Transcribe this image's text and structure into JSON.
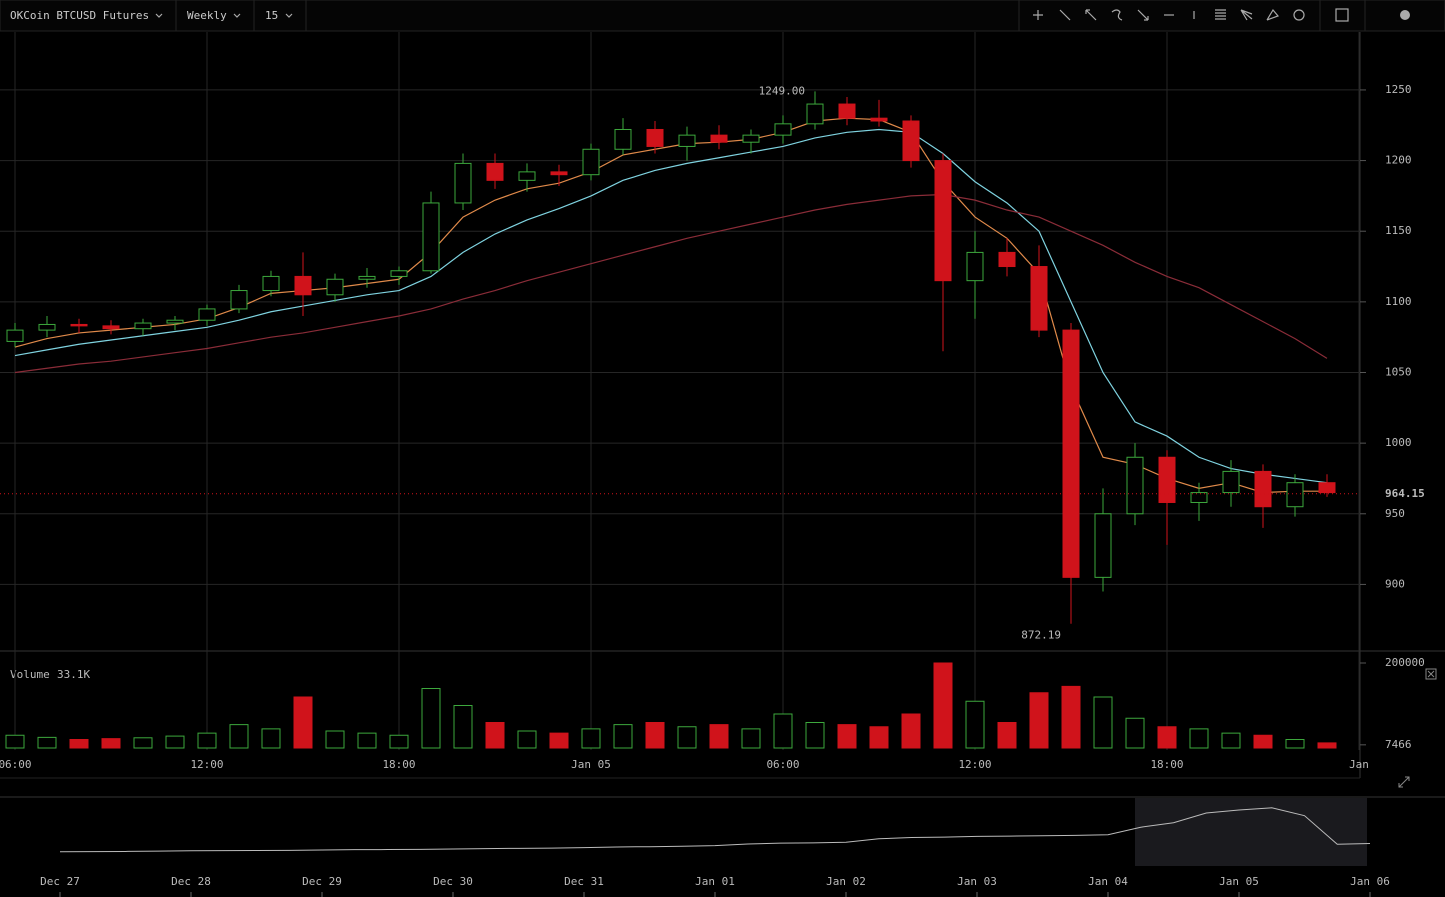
{
  "toolbar": {
    "symbol": "OKCoin BTCUSD Futures",
    "range": "Weekly",
    "interval": "15"
  },
  "chart_data": {
    "type": "candlestick",
    "categories": [
      "06:00",
      null,
      null,
      null,
      null,
      null,
      "12:00",
      null,
      null,
      null,
      null,
      null,
      "18:00",
      null,
      null,
      null,
      null,
      null,
      "Jan 05",
      null,
      null,
      null,
      null,
      null,
      "06:00",
      null,
      null,
      null,
      null,
      null,
      "12:00",
      null,
      null,
      null,
      null,
      null,
      "18:00",
      null,
      null,
      null,
      null,
      null,
      "Jan"
    ],
    "open": [
      1072,
      1080,
      1084,
      1083,
      1081,
      1085,
      1087,
      1095,
      1108,
      1118,
      1105,
      1116,
      1118,
      1122,
      1170,
      1198,
      1186,
      1192,
      1190,
      1208,
      1222,
      1210,
      1218,
      1213,
      1218,
      1226,
      1240,
      1230,
      1228,
      1200,
      1115,
      1135,
      1125,
      1080,
      905,
      950,
      990,
      958,
      965,
      980,
      955,
      972,
      null
    ],
    "high": [
      1085,
      1090,
      1088,
      1087,
      1088,
      1090,
      1098,
      1112,
      1122,
      1135,
      1120,
      1124,
      1125,
      1178,
      1205,
      1205,
      1198,
      1197,
      1212,
      1230,
      1228,
      1224,
      1225,
      1222,
      1232,
      1249,
      1245,
      1243,
      1232,
      1205,
      1150,
      1145,
      1140,
      1085,
      968,
      1000,
      995,
      972,
      988,
      985,
      978,
      978,
      null
    ],
    "low": [
      1068,
      1075,
      1078,
      1077,
      1076,
      1080,
      1083,
      1092,
      1104,
      1090,
      1100,
      1110,
      1112,
      1120,
      1165,
      1180,
      1178,
      1182,
      1186,
      1204,
      1205,
      1200,
      1208,
      1205,
      1212,
      1222,
      1225,
      1224,
      1195,
      1065,
      1088,
      1118,
      1075,
      872.19,
      895,
      942,
      928,
      945,
      955,
      940,
      948,
      962,
      null
    ],
    "close": [
      1080,
      1084,
      1083,
      1081,
      1085,
      1087,
      1095,
      1108,
      1118,
      1105,
      1116,
      1118,
      1122,
      1170,
      1198,
      1186,
      1192,
      1190,
      1208,
      1222,
      1210,
      1218,
      1213,
      1218,
      1226,
      1240,
      1230,
      1228,
      1200,
      1115,
      1135,
      1125,
      1080,
      905,
      950,
      990,
      958,
      965,
      980,
      955,
      972,
      965,
      null
    ],
    "volume": [
      30000,
      25000,
      20000,
      22000,
      24000,
      28000,
      35000,
      55000,
      45000,
      120000,
      40000,
      35000,
      30000,
      140000,
      100000,
      60000,
      40000,
      35000,
      45000,
      55000,
      60000,
      50000,
      55000,
      45000,
      80000,
      60000,
      55000,
      50000,
      80000,
      200000,
      110000,
      60000,
      130000,
      145000,
      120000,
      70000,
      50000,
      45000,
      35000,
      30000,
      20000,
      12000,
      null
    ],
    "overlays": [
      {
        "color": "#e08a4a",
        "values": [
          1068,
          1074,
          1078,
          1080,
          1082,
          1084,
          1088,
          1096,
          1106,
          1108,
          1110,
          1113,
          1116,
          1135,
          1160,
          1172,
          1180,
          1184,
          1192,
          1204,
          1208,
          1212,
          1213,
          1215,
          1220,
          1228,
          1230,
          1229,
          1220,
          1185,
          1160,
          1145,
          1120,
          1040,
          990,
          985,
          975,
          968,
          972,
          965,
          966,
          966,
          null
        ]
      },
      {
        "color": "#7fd3e0",
        "values": [
          1062,
          1066,
          1070,
          1073,
          1076,
          1079,
          1082,
          1087,
          1093,
          1097,
          1101,
          1105,
          1108,
          1118,
          1135,
          1148,
          1158,
          1166,
          1175,
          1186,
          1193,
          1198,
          1202,
          1206,
          1210,
          1216,
          1220,
          1222,
          1220,
          1205,
          1185,
          1170,
          1150,
          1100,
          1050,
          1015,
          1005,
          990,
          982,
          978,
          975,
          972,
          null
        ]
      },
      {
        "color": "#8a2c38",
        "values": [
          1050,
          1053,
          1056,
          1058,
          1061,
          1064,
          1067,
          1071,
          1075,
          1078,
          1082,
          1086,
          1090,
          1095,
          1102,
          1108,
          1115,
          1121,
          1127,
          1133,
          1139,
          1145,
          1150,
          1155,
          1160,
          1165,
          1169,
          1172,
          1175,
          1176,
          1172,
          1165,
          1160,
          1150,
          1140,
          1128,
          1118,
          1110,
          1098,
          1086,
          1074,
          1060,
          null
        ]
      }
    ],
    "up_color": "#3da83d",
    "down_color": "#d0131b",
    "ylim": [
      855,
      1291
    ],
    "yticks": [
      900,
      950,
      1000,
      1050,
      1100,
      1150,
      1200,
      1250
    ],
    "grid": true,
    "annotations": [
      {
        "index": 25,
        "value": 1249,
        "label": "1249.00"
      },
      {
        "index": 33,
        "value": 872.19,
        "label": "872.19"
      }
    ],
    "last_price": {
      "value": 964.15,
      "label": "964.15"
    },
    "volume_title": "Volume",
    "volume_value_label": "33.1K",
    "vlim": [
      0,
      200000
    ],
    "vticks": [
      7466,
      200000
    ]
  },
  "navigator": {
    "categories": [
      "Dec 27",
      null,
      null,
      null,
      "Dec 28",
      null,
      null,
      null,
      "Dec 29",
      null,
      null,
      null,
      "Dec 30",
      null,
      null,
      null,
      "Dec 31",
      null,
      null,
      null,
      "Jan 01",
      null,
      null,
      null,
      "Jan 02",
      null,
      null,
      null,
      "Jan 03",
      null,
      null,
      null,
      "Jan 04",
      null,
      null,
      null,
      "Jan 05",
      null,
      null,
      null,
      "Jan 06"
    ],
    "values": [
      905,
      906,
      907,
      909,
      912,
      913,
      914,
      915,
      918,
      920,
      921,
      922,
      925,
      928,
      930,
      931,
      935,
      940,
      942,
      945,
      950,
      962,
      968,
      970,
      975,
      1000,
      1010,
      1012,
      1018,
      1020,
      1022,
      1025,
      1030,
      1085,
      1118,
      1190,
      1212,
      1228,
      1170,
      960,
      965
    ],
    "ylim": [
      800,
      1300
    ],
    "color": "#bbbbbb"
  }
}
